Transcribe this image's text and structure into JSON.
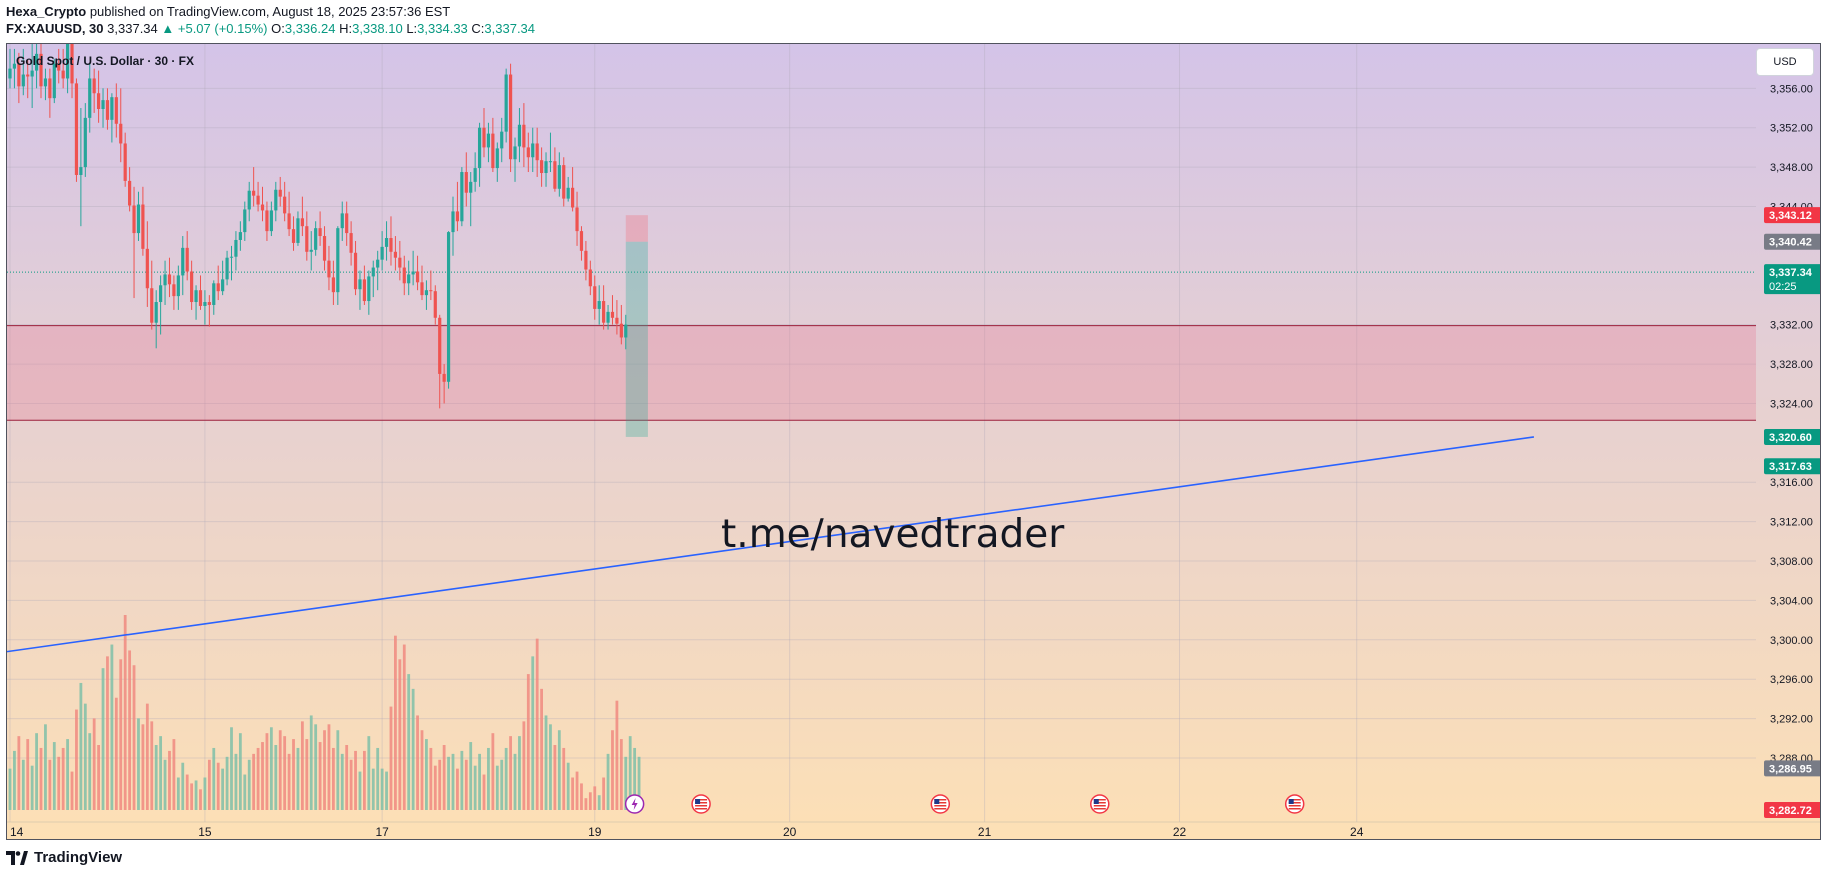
{
  "header": {
    "publisher": "Hexa_Crypto",
    "published_text": "published on TradingView.com, August 18, 2025 23:57:36 EST",
    "symbol": "FX:XAUUSD, 30",
    "last": "3,337.34",
    "change": "▲ +5.07 (+0.15%)",
    "o_label": "O:",
    "o_value": "3,336.24",
    "h_label": "H:",
    "h_value": "3,338.10",
    "l_label": "L:",
    "l_value": "3,334.33",
    "c_label": "C:",
    "c_value": "3,337.34"
  },
  "chart": {
    "legend_title": "Gold Spot / U.S. Dollar · 30 · FX",
    "currency_button": "USD",
    "watermark": "t.me/navedtrader"
  },
  "footer": {
    "brand": "TradingView"
  },
  "colors": {
    "bg_top": "#d4c4e8",
    "bg_bottom": "#fde0b5",
    "up": "#26a69a",
    "down": "#ef5350",
    "zone": "#e57390",
    "trendline": "#2962ff"
  },
  "chart_data": {
    "type": "candlestick",
    "symbol": "FX:XAUUSD",
    "timeframe": "30",
    "y_range": [
      3281.5,
      3360.5
    ],
    "y_ticks": [
      3356,
      3352,
      3348,
      3344,
      3332,
      3328,
      3324,
      3316,
      3312,
      3308,
      3304,
      3300,
      3296,
      3292,
      3288
    ],
    "x_ticks": [
      {
        "label": "14",
        "bar": 0
      },
      {
        "label": "15",
        "bar": 44
      },
      {
        "label": "17",
        "bar": 84
      },
      {
        "label": "19",
        "bar": 132
      },
      {
        "label": "20",
        "bar": 176
      },
      {
        "label": "21",
        "bar": 220
      },
      {
        "label": "22",
        "bar": 264
      },
      {
        "label": "24",
        "bar": 304
      }
    ],
    "price_labels": [
      {
        "text": "3,343.12",
        "price": 3343.12,
        "color": "#f23645"
      },
      {
        "text": "3,340.42",
        "price": 3340.42,
        "color": "#787b86"
      },
      {
        "text": "3,337.34",
        "sub": "02:25",
        "price": 3337.34,
        "color": "#089981"
      },
      {
        "text": "3,320.60",
        "price": 3320.6,
        "color": "#089981"
      },
      {
        "text": "3,317.63",
        "price": 3317.63,
        "color": "#089981"
      },
      {
        "text": "3,286.95",
        "price": 3286.95,
        "color": "#787b86"
      },
      {
        "text": "3,282.72",
        "price": 3282.72,
        "color": "#f23645"
      }
    ],
    "current_price": 3337.34,
    "demand_zone": {
      "top": 3331.9,
      "bottom": 3322.3
    },
    "position_box": {
      "bar_start": 139,
      "bar_end": 144,
      "entry": 3340.42,
      "stop": 3343.12,
      "target": 3320.6
    },
    "trendline": {
      "bar_start": 0,
      "price_start": 3298.8,
      "bar_end": 344,
      "price_end": 3320.6
    },
    "event_markers": [
      {
        "bar": 141,
        "kind": "lightning"
      },
      {
        "bar": 156,
        "kind": "us-flag"
      },
      {
        "bar": 210,
        "kind": "us-flag"
      },
      {
        "bar": 246,
        "kind": "us-flag"
      },
      {
        "bar": 290,
        "kind": "us-flag"
      }
    ],
    "candles": [
      [
        3357.0,
        3360.0,
        3356.0,
        3358.0
      ],
      [
        3358.0,
        3360.0,
        3356.0,
        3358.5
      ],
      [
        3358.5,
        3359.6,
        3354.5,
        3356.2
      ],
      [
        3356.2,
        3360.0,
        3355.3,
        3357.4
      ],
      [
        3357.4,
        3358.9,
        3355.0,
        3357.2
      ],
      [
        3357.2,
        3362.0,
        3354.0,
        3357.8
      ],
      [
        3357.8,
        3360.5,
        3356.0,
        3359.5
      ],
      [
        3359.5,
        3363.8,
        3355.0,
        3356.2
      ],
      [
        3356.2,
        3358.0,
        3354.8,
        3357.0
      ],
      [
        3357.0,
        3358.0,
        3353.0,
        3355.0
      ],
      [
        3355.0,
        3359.0,
        3354.5,
        3358.5
      ],
      [
        3358.5,
        3360.0,
        3356.5,
        3357.8
      ],
      [
        3357.8,
        3360.0,
        3356.0,
        3357.0
      ],
      [
        3357.0,
        3362.5,
        3355.5,
        3360.8
      ],
      [
        3360.8,
        3363.0,
        3355.0,
        3356.5
      ],
      [
        3356.5,
        3357.0,
        3346.5,
        3347.2
      ],
      [
        3347.2,
        3354.0,
        3342.0,
        3348.0
      ],
      [
        3348.0,
        3354.5,
        3347.0,
        3353.0
      ],
      [
        3353.0,
        3358.5,
        3351.5,
        3357.0
      ],
      [
        3357.0,
        3358.0,
        3353.5,
        3355.5
      ],
      [
        3355.5,
        3357.8,
        3352.5,
        3353.9
      ],
      [
        3353.9,
        3356.0,
        3352.0,
        3354.8
      ],
      [
        3354.8,
        3356.0,
        3351.8,
        3352.8
      ],
      [
        3352.8,
        3355.5,
        3350.5,
        3355.1
      ],
      [
        3355.1,
        3356.5,
        3351.0,
        3352.4
      ],
      [
        3352.4,
        3356.0,
        3348.5,
        3350.4
      ],
      [
        3350.4,
        3351.5,
        3346.0,
        3346.6
      ],
      [
        3346.6,
        3348.0,
        3343.5,
        3344.1
      ],
      [
        3344.1,
        3346.0,
        3334.7,
        3341.3
      ],
      [
        3341.3,
        3345.5,
        3340.5,
        3344.2
      ],
      [
        3344.2,
        3346.0,
        3339.0,
        3339.7
      ],
      [
        3339.7,
        3342.5,
        3333.8,
        3335.7
      ],
      [
        3335.7,
        3338.5,
        3331.5,
        3332.2
      ],
      [
        3332.2,
        3335.5,
        3329.6,
        3334.3
      ],
      [
        3334.3,
        3337.0,
        3331.0,
        3336.0
      ],
      [
        3336.0,
        3338.5,
        3334.0,
        3337.1
      ],
      [
        3337.1,
        3338.8,
        3334.8,
        3336.1
      ],
      [
        3336.1,
        3337.0,
        3333.5,
        3334.9
      ],
      [
        3334.9,
        3338.0,
        3333.5,
        3337.0
      ],
      [
        3337.0,
        3341.0,
        3335.0,
        3339.8
      ],
      [
        3339.8,
        3341.5,
        3336.5,
        3337.4
      ],
      [
        3337.4,
        3338.5,
        3333.5,
        3334.3
      ],
      [
        3334.3,
        3336.0,
        3332.5,
        3335.5
      ],
      [
        3335.5,
        3337.0,
        3333.5,
        3333.9
      ],
      [
        3333.9,
        3335.5,
        3332.0,
        3334.3
      ],
      [
        3334.3,
        3335.0,
        3331.8,
        3334.0
      ],
      [
        3334.0,
        3336.5,
        3333.0,
        3336.2
      ],
      [
        3336.2,
        3338.0,
        3334.5,
        3335.4
      ],
      [
        3335.4,
        3338.5,
        3335.0,
        3336.6
      ],
      [
        3336.6,
        3339.5,
        3336.0,
        3338.8
      ],
      [
        3338.8,
        3340.0,
        3336.5,
        3338.9
      ],
      [
        3338.9,
        3341.5,
        3337.5,
        3340.6
      ],
      [
        3340.6,
        3342.5,
        3339.5,
        3341.4
      ],
      [
        3341.4,
        3344.5,
        3340.5,
        3343.7
      ],
      [
        3343.7,
        3346.5,
        3342.5,
        3345.6
      ],
      [
        3345.6,
        3348.0,
        3344.0,
        3345.1
      ],
      [
        3345.1,
        3346.5,
        3343.5,
        3344.2
      ],
      [
        3344.2,
        3346.0,
        3342.5,
        3343.6
      ],
      [
        3343.6,
        3344.5,
        3340.5,
        3341.5
      ],
      [
        3341.5,
        3344.5,
        3341.0,
        3343.6
      ],
      [
        3343.6,
        3346.5,
        3342.5,
        3345.7
      ],
      [
        3345.7,
        3347.0,
        3344.0,
        3345.0
      ],
      [
        3345.0,
        3346.5,
        3342.5,
        3343.3
      ],
      [
        3343.3,
        3345.5,
        3341.0,
        3341.7
      ],
      [
        3341.7,
        3343.0,
        3339.5,
        3340.3
      ],
      [
        3340.3,
        3343.5,
        3340.0,
        3342.8
      ],
      [
        3342.8,
        3345.0,
        3341.0,
        3342.0
      ],
      [
        3342.0,
        3343.5,
        3338.5,
        3339.4
      ],
      [
        3339.4,
        3341.5,
        3337.5,
        3339.6
      ],
      [
        3339.6,
        3342.5,
        3339.0,
        3341.8
      ],
      [
        3341.8,
        3343.5,
        3340.0,
        3341.0
      ],
      [
        3341.0,
        3342.0,
        3337.5,
        3338.5
      ],
      [
        3338.5,
        3340.0,
        3335.5,
        3336.8
      ],
      [
        3336.8,
        3338.5,
        3334.0,
        3335.3
      ],
      [
        3335.3,
        3342.0,
        3334.0,
        3341.8
      ],
      [
        3341.8,
        3344.5,
        3340.5,
        3343.3
      ],
      [
        3343.3,
        3344.5,
        3340.0,
        3341.3
      ],
      [
        3341.3,
        3342.5,
        3338.0,
        3339.3
      ],
      [
        3339.3,
        3340.5,
        3335.0,
        3335.6
      ],
      [
        3335.6,
        3337.5,
        3333.5,
        3336.6
      ],
      [
        3336.6,
        3338.0,
        3334.0,
        3334.4
      ],
      [
        3334.4,
        3337.5,
        3333.0,
        3336.9
      ],
      [
        3336.9,
        3338.5,
        3334.8,
        3337.8
      ],
      [
        3337.8,
        3339.5,
        3335.5,
        3338.6
      ],
      [
        3338.6,
        3341.5,
        3337.5,
        3339.9
      ],
      [
        3339.9,
        3342.5,
        3338.5,
        3340.8
      ],
      [
        3340.8,
        3343.0,
        3338.0,
        3339.4
      ],
      [
        3339.4,
        3341.0,
        3337.5,
        3338.8
      ],
      [
        3338.8,
        3340.5,
        3336.5,
        3337.8
      ],
      [
        3337.8,
        3339.0,
        3335.0,
        3336.2
      ],
      [
        3336.2,
        3338.5,
        3335.0,
        3337.1
      ],
      [
        3337.1,
        3339.5,
        3336.0,
        3337.4
      ],
      [
        3337.4,
        3339.0,
        3335.5,
        3336.3
      ],
      [
        3336.3,
        3338.0,
        3334.5,
        3335.0
      ],
      [
        3335.0,
        3336.5,
        3333.5,
        3335.5
      ],
      [
        3335.5,
        3337.5,
        3334.5,
        3335.4
      ],
      [
        3335.4,
        3336.0,
        3332.0,
        3332.7
      ],
      [
        3332.7,
        3333.0,
        3323.5,
        3327.0
      ],
      [
        3327.0,
        3328.0,
        3324.0,
        3326.2
      ],
      [
        3326.2,
        3341.5,
        3325.5,
        3341.4
      ],
      [
        3341.4,
        3345.0,
        3339.0,
        3343.5
      ],
      [
        3343.5,
        3346.5,
        3341.5,
        3342.5
      ],
      [
        3342.5,
        3348.0,
        3342.0,
        3347.5
      ],
      [
        3347.5,
        3349.5,
        3344.0,
        3345.4
      ],
      [
        3345.4,
        3347.5,
        3342.0,
        3346.5
      ],
      [
        3346.5,
        3349.5,
        3345.5,
        3347.9
      ],
      [
        3347.9,
        3352.5,
        3346.0,
        3352.0
      ],
      [
        3352.0,
        3354.0,
        3349.0,
        3350.0
      ],
      [
        3350.0,
        3352.5,
        3348.5,
        3351.4
      ],
      [
        3351.4,
        3353.0,
        3347.5,
        3347.9
      ],
      [
        3347.9,
        3350.5,
        3346.5,
        3349.9
      ],
      [
        3349.9,
        3353.0,
        3348.5,
        3351.6
      ],
      [
        3351.6,
        3358.0,
        3350.5,
        3357.4
      ],
      [
        3357.4,
        3358.5,
        3347.5,
        3348.8
      ],
      [
        3348.8,
        3351.0,
        3346.5,
        3350.1
      ],
      [
        3350.1,
        3354.0,
        3348.5,
        3352.3
      ],
      [
        3352.3,
        3354.5,
        3348.0,
        3350.0
      ],
      [
        3350.0,
        3351.5,
        3347.5,
        3349.0
      ],
      [
        3349.0,
        3352.0,
        3347.5,
        3350.4
      ],
      [
        3350.4,
        3352.0,
        3347.0,
        3348.7
      ],
      [
        3348.7,
        3350.0,
        3346.0,
        3347.4
      ],
      [
        3347.4,
        3349.5,
        3346.0,
        3348.6
      ],
      [
        3348.6,
        3351.5,
        3347.5,
        3348.6
      ],
      [
        3348.6,
        3350.0,
        3345.5,
        3345.8
      ],
      [
        3345.8,
        3349.5,
        3345.0,
        3348.2
      ],
      [
        3348.2,
        3349.0,
        3344.0,
        3344.8
      ],
      [
        3344.8,
        3347.0,
        3344.5,
        3345.9
      ],
      [
        3345.9,
        3348.0,
        3343.5,
        3343.9
      ],
      [
        3343.9,
        3345.5,
        3340.0,
        3341.5
      ],
      [
        3341.5,
        3342.0,
        3338.5,
        3339.5
      ],
      [
        3339.5,
        3340.5,
        3336.5,
        3337.6
      ],
      [
        3337.6,
        3338.5,
        3335.0,
        3335.9
      ],
      [
        3335.9,
        3337.0,
        3332.5,
        3333.6
      ],
      [
        3333.6,
        3336.0,
        3332.0,
        3334.4
      ],
      [
        3334.4,
        3336.0,
        3331.5,
        3332.2
      ],
      [
        3332.2,
        3334.0,
        3331.5,
        3333.3
      ],
      [
        3333.3,
        3335.0,
        3332.0,
        3332.7
      ],
      [
        3332.7,
        3334.5,
        3331.0,
        3332.1
      ],
      [
        3332.1,
        3334.0,
        3330.0,
        3330.7
      ],
      [
        3330.7,
        3333.0,
        3329.5,
        3332.0
      ]
    ],
    "volumes": [
      1.4,
      2.0,
      2.5,
      1.7,
      2.4,
      1.5,
      2.6,
      2.1,
      2.9,
      1.7,
      2.3,
      1.8,
      2.1,
      2.4,
      1.3,
      3.4,
      4.3,
      3.6,
      2.6,
      3.1,
      2.2,
      4.8,
      5.2,
      5.6,
      3.8,
      5.1,
      6.6,
      5.4,
      4.9,
      3.1,
      2.9,
      3.6,
      3.0,
      2.2,
      2.5,
      1.7,
      2.0,
      2.4,
      1.1,
      1.6,
      1.2,
      0.9,
      1.0,
      0.7,
      1.1,
      1.7,
      2.1,
      1.6,
      1.4,
      1.8,
      2.8,
      1.9,
      2.6,
      1.2,
      1.7,
      1.9,
      2.1,
      2.3,
      2.6,
      2.8,
      2.2,
      2.7,
      2.5,
      1.9,
      2.4,
      2.1,
      3.0,
      2.4,
      3.2,
      2.9,
      2.3,
      2.7,
      2.9,
      2.1,
      2.7,
      1.9,
      2.2,
      1.7,
      2.0,
      1.3,
      2.0,
      2.5,
      1.4,
      2.1,
      1.4,
      1.3,
      3.5,
      5.9,
      5.1,
      5.6,
      4.6,
      4.1,
      3.2,
      2.7,
      2.4,
      2.1,
      1.5,
      1.7,
      2.2,
      1.8,
      1.9,
      1.4,
      2.0,
      1.7,
      2.3,
      1.5,
      1.9,
      1.2,
      2.1,
      2.6,
      1.5,
      1.7,
      2.1,
      2.5,
      1.9,
      2.5,
      3.0,
      4.6,
      5.2,
      5.8,
      4.1,
      3.2,
      2.9,
      2.2,
      2.7,
      2.1,
      1.6,
      1.1,
      1.3,
      0.9,
      0.4,
      0.6,
      0.8,
      0.5,
      1.1,
      1.9,
      2.7,
      3.7,
      2.4,
      1.8,
      2.5,
      2.1,
      1.8
    ]
  }
}
